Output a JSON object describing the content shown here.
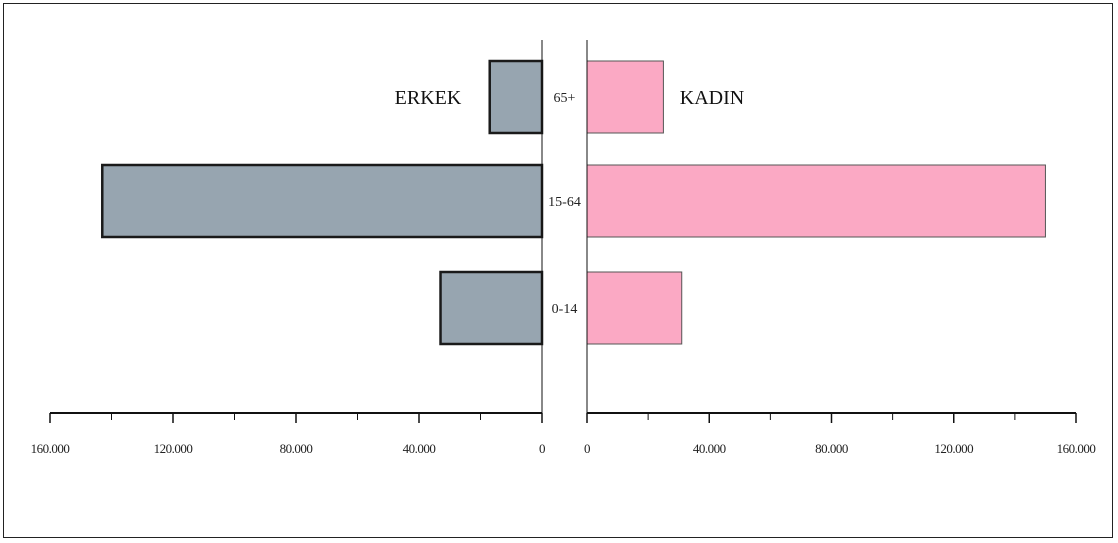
{
  "chart_data": {
    "type": "bar",
    "orientation": "horizontal",
    "layout": "population-pyramid",
    "categories": [
      "65+",
      "15-64",
      "0-14"
    ],
    "series": [
      {
        "name": "ERKEK",
        "side": "left",
        "color": "#97a5b0",
        "values": [
          17000,
          143000,
          33000
        ]
      },
      {
        "name": "KADIN",
        "side": "right",
        "color": "#fba9c4",
        "values": [
          25000,
          150000,
          31000
        ]
      }
    ],
    "xlim": [
      0,
      160000
    ],
    "left_tick_labels": [
      "160.000",
      "120.000",
      "80.000",
      "40.000",
      "0"
    ],
    "right_tick_labels": [
      "0",
      "40.000",
      "80.000",
      "120.000",
      "160.000"
    ],
    "left_ticks": [
      160000,
      120000,
      80000,
      40000,
      0
    ],
    "right_ticks": [
      0,
      40000,
      80000,
      120000,
      160000
    ],
    "grid": false,
    "title": "",
    "xlabel": "",
    "ylabel": ""
  }
}
